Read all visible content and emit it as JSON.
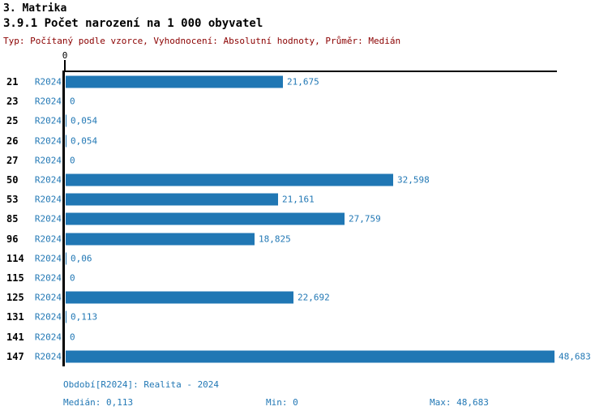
{
  "title": "3. Matrika",
  "subtitle": "3.9.1 Počet narození na 1 000 obyvatel",
  "meta": "Typ: Počítaný podle vzorce, Vyhodnocení: Absolutní hodnoty, Průměr: Medián",
  "colors": {
    "bar_blue": "#2077b4",
    "text_blue": "#2278b5",
    "meta_red": "#8b0000",
    "axis_black": "#000000",
    "background": "#ffffff"
  },
  "axis": {
    "zero_tick_label": "0"
  },
  "chart_data": {
    "type": "bar",
    "orientation": "horizontal",
    "title": "3.9.1 Počet narození na 1 000 obyvatel",
    "categories": [
      "21",
      "23",
      "25",
      "26",
      "27",
      "50",
      "53",
      "85",
      "96",
      "114",
      "115",
      "125",
      "131",
      "141",
      "147"
    ],
    "series": [
      {
        "name": "R2024",
        "values": [
          21.675,
          0,
          0.054,
          0.054,
          0,
          32.598,
          21.161,
          27.759,
          18.825,
          0.06,
          0,
          22.692,
          0.113,
          0,
          48.683
        ],
        "value_labels": [
          "21,675",
          "0",
          "0,054",
          "0,054",
          "0",
          "32,598",
          "21,161",
          "27,759",
          "18,825",
          "0,06",
          "0",
          "22,692",
          "0,113",
          "0",
          "48,683"
        ]
      }
    ],
    "xlim": [
      0,
      48.683
    ],
    "grid": false,
    "legend": false
  },
  "footer": {
    "period": "Období[R2024]: Realita - 2024",
    "median": "Medián: 0,113",
    "min": "Min: 0",
    "max": "Max: 48,683"
  }
}
